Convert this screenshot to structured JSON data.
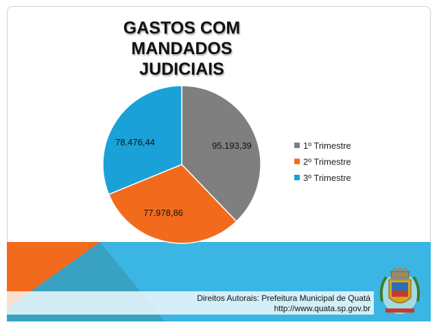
{
  "slide": {
    "title_line1": "GASTOS COM MANDADOS",
    "title_line2": "JUDICIAIS",
    "copyright": "Direitos Autorais: Prefeitura Municipal de Quatá",
    "url": "http://www.quata.sp.gov.br",
    "emblem_icon": "municipal-coat-of-arms"
  },
  "colors": {
    "gray": "#7f7f7f",
    "orange": "#f26b1d",
    "blue": "#1aa1d8",
    "band_blue": "#3bb5e3",
    "band_dark": "#3aa0bf"
  },
  "chart_data": {
    "type": "pie",
    "title": "GASTOS COM MANDADOS JUDICIAIS",
    "categories": [
      "1º Trimestre",
      "2º Trimestre",
      "3º Trimestre"
    ],
    "values": [
      95193.39,
      77978.86,
      78476.44
    ],
    "value_labels": [
      "95.193,39",
      "77.978,86",
      "78.476,44"
    ],
    "colors": [
      "#7f7f7f",
      "#f26b1d",
      "#1aa1d8"
    ],
    "legend": "right",
    "start_angle": "12 o'clock",
    "direction": "clockwise"
  }
}
